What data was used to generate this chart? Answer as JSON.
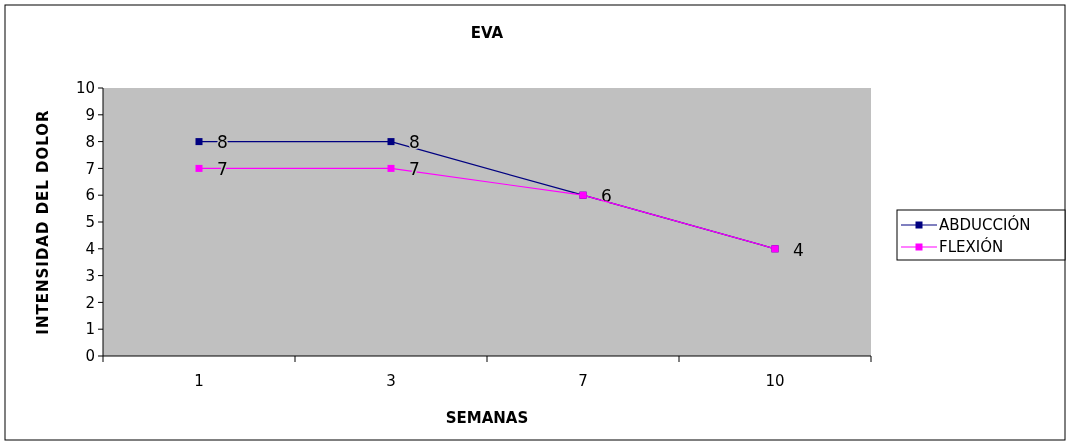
{
  "chart_data": {
    "type": "line",
    "title": "EVA",
    "xlabel": "SEMANAS",
    "ylabel": "INTENSIDAD DEL DOLOR",
    "categories": [
      "1",
      "3",
      "7",
      "10"
    ],
    "series": [
      {
        "name": "ABDUCCIÓN",
        "color": "#000080",
        "values": [
          8,
          8,
          6,
          4
        ],
        "value_labels": [
          "8",
          "8",
          "6",
          "4"
        ]
      },
      {
        "name": "FLEXIÓN",
        "color": "#ff00ff",
        "values": [
          7,
          7,
          6,
          4
        ],
        "value_labels": [
          "7",
          "7",
          null,
          null
        ]
      }
    ],
    "ylim": [
      0,
      10
    ],
    "yticks": [
      0,
      1,
      2,
      3,
      4,
      5,
      6,
      7,
      8,
      9,
      10
    ],
    "marker": "square",
    "legend": "right",
    "grid": false
  }
}
